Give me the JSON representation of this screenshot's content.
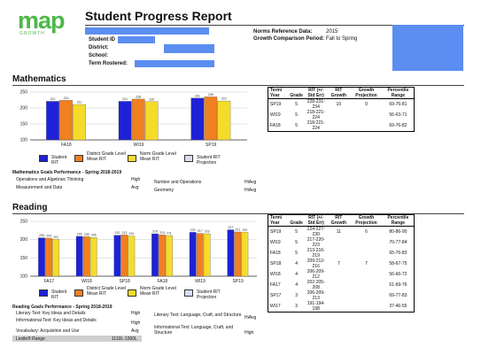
{
  "brand": {
    "name": "map",
    "sub": "GROWTH"
  },
  "title": "Student Progress Report",
  "student": {
    "id_label": "Student ID",
    "district_label": "District:",
    "school_label": "School:",
    "tested_label": "Term Rostered:"
  },
  "norms": {
    "ref_label": "Norms Reference Data:",
    "ref_value": "2015",
    "period_label": "Growth Comparison Period:",
    "period_value": "Fall to Spring"
  },
  "colors": {
    "student": "#1e22d6",
    "district": "#f08020",
    "norm": "#f5dc2a",
    "projection": "#d8dcf5"
  },
  "legend": {
    "student": "Student RIT",
    "district": "District Grade Level Mean RIT",
    "norm": "Norm Grade Level Mean RIT",
    "projection": "Student RIT Projection"
  },
  "math": {
    "title": "Mathematics",
    "goals_title": "Mathematics Goals Performance - Spring 2018-2019",
    "goals": [
      {
        "name": "Operations and Algebraic Thinking",
        "value": "High"
      },
      {
        "name": "Measurement and Data",
        "value": "Avg"
      },
      {
        "name": "Number and Operations",
        "value": "HiAvg"
      },
      {
        "name": "Geometry",
        "value": "HiAvg"
      }
    ],
    "table": {
      "headers": [
        "Term/ Year",
        "Grade",
        "RIT (+/- Std Err)",
        "RIT Growth",
        "Growth Projection",
        "Percentile Range"
      ],
      "rows": [
        [
          "SP19",
          "5",
          "228-231-234",
          "10",
          "9",
          "69-76-81"
        ],
        [
          "WI19",
          "5",
          "218-221-224",
          "",
          "",
          "56-63-71"
        ],
        [
          "FA18",
          "5",
          "218-221-224",
          "",
          "",
          "69-76-82"
        ]
      ]
    }
  },
  "reading": {
    "title": "Reading",
    "goals_title": "Reading Goals Performance - Spring 2018-2019",
    "goals_left": [
      {
        "name": "Literary Text: Key Ideas and Details",
        "value": "High"
      },
      {
        "name": "Informational Text: Key Ideas and Details",
        "value": "High"
      },
      {
        "name": "Vocabulary: Acquisition and Use",
        "value": "Avg"
      }
    ],
    "lexile": {
      "name": "Lexile® Range",
      "value": "1110L-1260L"
    },
    "goals_right": [
      {
        "name": "Literary Text: Language, Craft, and Structure",
        "value": "HiAvg"
      },
      {
        "name": "Informational Text: Language, Craft, and Structure",
        "value": "High"
      }
    ],
    "table": {
      "headers": [
        "Term/ Year",
        "Grade",
        "RIT (+/- Std Err)",
        "RIT Growth",
        "Growth Projection",
        "Percentile Range"
      ],
      "rows": [
        [
          "SP19",
          "5",
          "224-227-230",
          "11",
          "6",
          "80-86-90"
        ],
        [
          "WI19",
          "5",
          "217-220-223",
          "",
          "",
          "70-77-84"
        ],
        [
          "FA18",
          "5",
          "213-216-219",
          "",
          "",
          "65-76-83"
        ],
        [
          "SP18",
          "4",
          "209-212-216",
          "7",
          "7",
          "58-67-75"
        ],
        [
          "WI18",
          "4",
          "206-209-212",
          "",
          "",
          "56-66-72"
        ],
        [
          "FA17",
          "4",
          "202-205-208",
          "",
          "",
          "61-69-76"
        ],
        [
          "SP17",
          "3",
          "206-209-213",
          "",
          "",
          "69-77-83"
        ],
        [
          "WI17",
          "3",
          "191-194-198",
          "",
          "",
          "37-46-55"
        ]
      ]
    }
  },
  "chart_data": [
    {
      "type": "bar",
      "title": "Mathematics",
      "categories": [
        "FA18",
        "WI19",
        "SP19"
      ],
      "series": [
        {
          "name": "Student RIT",
          "values": [
            221,
            221,
            231
          ]
        },
        {
          "name": "District Grade Level Mean RIT",
          "values": [
            224,
            228,
            235
          ]
        },
        {
          "name": "Norm Grade Level Mean RIT",
          "values": [
            211,
            220,
            222
          ]
        }
      ],
      "ylim": [
        100,
        250
      ],
      "yticks": [
        100,
        150,
        200,
        250
      ],
      "grid": true
    },
    {
      "type": "bar",
      "title": "Reading",
      "categories": [
        "FA17",
        "WI18",
        "SP18",
        "FA18",
        "WI19",
        "SP19"
      ],
      "series": [
        {
          "name": "Student RIT",
          "values": [
            205,
            209,
            212,
            216,
            220,
            227
          ]
        },
        {
          "name": "District Grade Level Mean RIT",
          "values": [
            204,
            208,
            213,
            213,
            217,
            221
          ]
        },
        {
          "name": "Norm Grade Level Mean RIT",
          "values": [
            201,
            206,
            210,
            211,
            216,
            220
          ]
        }
      ],
      "ylim": [
        100,
        250
      ],
      "yticks": [
        100,
        150,
        200,
        250
      ],
      "grid": true
    }
  ]
}
